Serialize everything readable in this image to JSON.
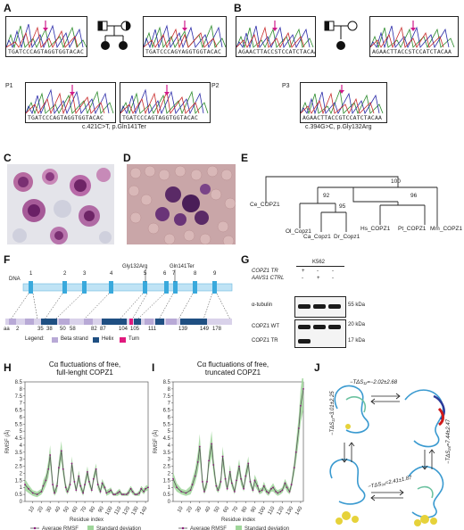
{
  "panels": {
    "A": "A",
    "B": "B",
    "C": "C",
    "D": "D",
    "E": "E",
    "F": "F",
    "G": "G",
    "H": "H",
    "I": "I",
    "J": "J"
  },
  "panel_a": {
    "seq_top_left": "TGATCCCAGTAGGTGGTACAC",
    "seq_top_right": "TGATCCCAGYAGGTGGTACAC",
    "seq_p1": "TGATCCCAGTAGGTGGTACAC",
    "seq_p2": "TGATCCCAGTAGGTGGTACAC",
    "label_p1": "P1",
    "label_p2": "P2",
    "mutation": "c.421C>T, p.Gln141Ter"
  },
  "panel_b": {
    "seq_top_left": "AGAACTTACCSTCCATCTACAA",
    "seq_top_right": "AGAACTTACCSTCCATCTACAA",
    "seq_p3": "AGAACTTACCGTCCATCTACAA",
    "label_p3": "P3",
    "mutation": "c.394G>C, p.Gly132Arg"
  },
  "panel_e": {
    "leaves": [
      "Ce_COPZ1",
      "Ol_Copz1",
      "Ca_Copz1",
      "Dr_Copz1",
      "Hs_COPZ1",
      "Pt_COPZ1",
      "Mm_COPZ1"
    ],
    "bootstrap": [
      "100",
      "92",
      "95",
      "96"
    ]
  },
  "panel_f": {
    "dna_label": "DNA",
    "exons": [
      "1",
      "2",
      "3",
      "4",
      "5",
      "6",
      "7",
      "8",
      "9"
    ],
    "variant_left": "Gly132Arg",
    "variant_right": "Gln141Ter",
    "aa_label": "aa",
    "aa_ticks": [
      "2",
      "35",
      "38",
      "50",
      "58",
      "82",
      "87",
      "104",
      "105",
      "111",
      "139",
      "149",
      "178"
    ],
    "legend_title": "Legend:",
    "legend_items": [
      "Beta strand",
      "Helix",
      "Turn"
    ],
    "colors": {
      "beta": "#b8a9d6",
      "helix": "#1f4f82",
      "turn": "#e0197d",
      "exon": "#39a9dc",
      "dna": "#bfe3f5"
    }
  },
  "panel_g": {
    "cell_line": "K562",
    "row1_label": "COPZ1 TR",
    "row2_label": "AAVS1 CTRL",
    "row1_vals": [
      "+",
      "-",
      "-"
    ],
    "row2_vals": [
      "-",
      "+",
      "-"
    ],
    "band_alpha": "α-tubulin",
    "band_wt": "COPZ1 WT",
    "band_tr": "COPZ1 TR",
    "mw_55": "55 kDa",
    "mw_20": "20 kDa",
    "mw_17": "17 kDa"
  },
  "panel_h": {
    "title_line1": "Cα fluctuations of free,",
    "title_line2": "full-lenght COPZ1",
    "ylabel": "RMSF (Å)",
    "xlabel": "Residue index",
    "legend_avg": "Average RMSF",
    "legend_sd": "Standard deviation"
  },
  "panel_i": {
    "title_line1": "Cα fluctuations of free,",
    "title_line2": "truncated COPZ1",
    "ylabel": "RMSF (Å)",
    "xlabel": "Residue index",
    "legend_avg": "Average RMSF",
    "legend_sd": "Standard deviation"
  },
  "panel_j": {
    "top": "−TΔS₁₂=−2.02±2.68",
    "left": "−TΔS₁₃=3.01±2.25",
    "right": "−TΔS₂₄=7.44±2.47",
    "bottom": "−TΔS₃₄=2.41±1.87"
  },
  "chart_data": [
    {
      "type": "line",
      "title": "Cα fluctuations of free, full-lenght COPZ1",
      "xlabel": "Residue index",
      "ylabel": "RMSF (Å)",
      "xlim": [
        1,
        143
      ],
      "ylim": [
        0,
        8.5
      ],
      "xticks": [
        10,
        20,
        30,
        40,
        50,
        60,
        70,
        80,
        90,
        100,
        110,
        120,
        130,
        140
      ],
      "yticks": [
        0,
        0.5,
        1,
        1.5,
        2,
        2.5,
        3,
        3.5,
        4,
        4.5,
        5,
        5.5,
        6,
        6.5,
        7,
        7.5,
        8,
        8.5
      ],
      "x": [
        1,
        5,
        10,
        15,
        20,
        22,
        25,
        28,
        30,
        33,
        35,
        38,
        40,
        43,
        45,
        48,
        50,
        53,
        55,
        58,
        60,
        63,
        65,
        68,
        70,
        73,
        75,
        78,
        80,
        83,
        85,
        88,
        90,
        93,
        95,
        98,
        100,
        103,
        105,
        108,
        110,
        113,
        115,
        118,
        120,
        123,
        125,
        128,
        130,
        133,
        135,
        138,
        140,
        143
      ],
      "series": [
        {
          "name": "Average RMSF",
          "values": [
            1.2,
            0.9,
            0.6,
            0.5,
            0.7,
            1.1,
            1.5,
            2.3,
            3.3,
            1.2,
            0.6,
            1.1,
            2.4,
            3.6,
            2.3,
            1.0,
            0.7,
            1.2,
            2.7,
            1.4,
            0.8,
            1.8,
            1.1,
            0.6,
            1.2,
            2.1,
            1.4,
            0.8,
            1.6,
            2.3,
            1.2,
            0.7,
            1.3,
            1.0,
            0.6,
            0.7,
            0.8,
            0.5,
            0.5,
            0.6,
            0.7,
            0.5,
            0.5,
            0.5,
            0.6,
            0.9,
            0.7,
            0.5,
            0.5,
            0.6,
            0.9,
            0.7,
            0.9,
            1.0
          ]
        },
        {
          "name": "Standard deviation",
          "values": [
            0.4,
            0.3,
            0.2,
            0.2,
            0.2,
            0.4,
            0.4,
            0.6,
            0.7,
            0.4,
            0.2,
            0.4,
            0.5,
            0.7,
            0.5,
            0.3,
            0.2,
            0.3,
            0.5,
            0.3,
            0.2,
            0.4,
            0.3,
            0.2,
            0.3,
            0.4,
            0.3,
            0.2,
            0.3,
            0.4,
            0.3,
            0.2,
            0.3,
            0.2,
            0.2,
            0.2,
            0.2,
            0.1,
            0.1,
            0.2,
            0.2,
            0.1,
            0.1,
            0.1,
            0.2,
            0.2,
            0.2,
            0.1,
            0.1,
            0.2,
            0.2,
            0.2,
            0.2,
            0.2
          ]
        }
      ],
      "legend": "bottom"
    },
    {
      "type": "line",
      "title": "Cα fluctuations of free, truncated COPZ1",
      "xlabel": "Residue index",
      "ylabel": "RMSF (Å)",
      "xlim": [
        1,
        143
      ],
      "ylim": [
        0,
        8.5
      ],
      "xticks": [
        10,
        20,
        30,
        40,
        50,
        60,
        70,
        80,
        90,
        100,
        110,
        120,
        130,
        140
      ],
      "yticks": [
        0,
        0.5,
        1,
        1.5,
        2,
        2.5,
        3,
        3.5,
        4,
        4.5,
        5,
        5.5,
        6,
        6.5,
        7,
        7.5,
        8,
        8.5
      ],
      "x": [
        1,
        5,
        10,
        15,
        20,
        22,
        25,
        28,
        30,
        33,
        35,
        38,
        40,
        43,
        45,
        48,
        50,
        53,
        55,
        58,
        60,
        63,
        65,
        68,
        70,
        73,
        75,
        78,
        80,
        83,
        85,
        88,
        90,
        93,
        95,
        98,
        100,
        103,
        105,
        108,
        110,
        113,
        115,
        118,
        120,
        123,
        125,
        128,
        130,
        133,
        135,
        138,
        140,
        143
      ],
      "series": [
        {
          "name": "Average RMSF",
          "values": [
            1.6,
            1.0,
            0.7,
            0.6,
            0.8,
            1.2,
            1.8,
            2.8,
            3.9,
            1.4,
            0.7,
            1.4,
            2.9,
            4.1,
            2.6,
            1.1,
            0.8,
            1.4,
            3.2,
            1.6,
            0.9,
            2.1,
            1.3,
            0.7,
            1.5,
            2.5,
            1.6,
            0.9,
            1.8,
            2.7,
            1.4,
            0.8,
            1.5,
            1.1,
            0.7,
            0.8,
            1.1,
            0.7,
            0.6,
            0.9,
            1.0,
            0.7,
            0.6,
            0.7,
            0.8,
            1.3,
            1.0,
            0.7,
            1.2,
            2.4,
            3.5,
            5.2,
            6.8,
            8.0
          ]
        },
        {
          "name": "Standard deviation",
          "values": [
            0.5,
            0.3,
            0.2,
            0.2,
            0.3,
            0.4,
            0.5,
            0.7,
            0.9,
            0.4,
            0.2,
            0.4,
            0.6,
            0.9,
            0.6,
            0.3,
            0.2,
            0.4,
            0.7,
            0.4,
            0.2,
            0.5,
            0.3,
            0.2,
            0.4,
            0.5,
            0.4,
            0.2,
            0.4,
            0.5,
            0.3,
            0.2,
            0.4,
            0.3,
            0.2,
            0.2,
            0.3,
            0.2,
            0.2,
            0.2,
            0.3,
            0.2,
            0.2,
            0.2,
            0.2,
            0.3,
            0.3,
            0.2,
            0.3,
            0.5,
            0.7,
            0.9,
            1.2,
            1.5
          ]
        }
      ],
      "legend": "bottom"
    }
  ]
}
